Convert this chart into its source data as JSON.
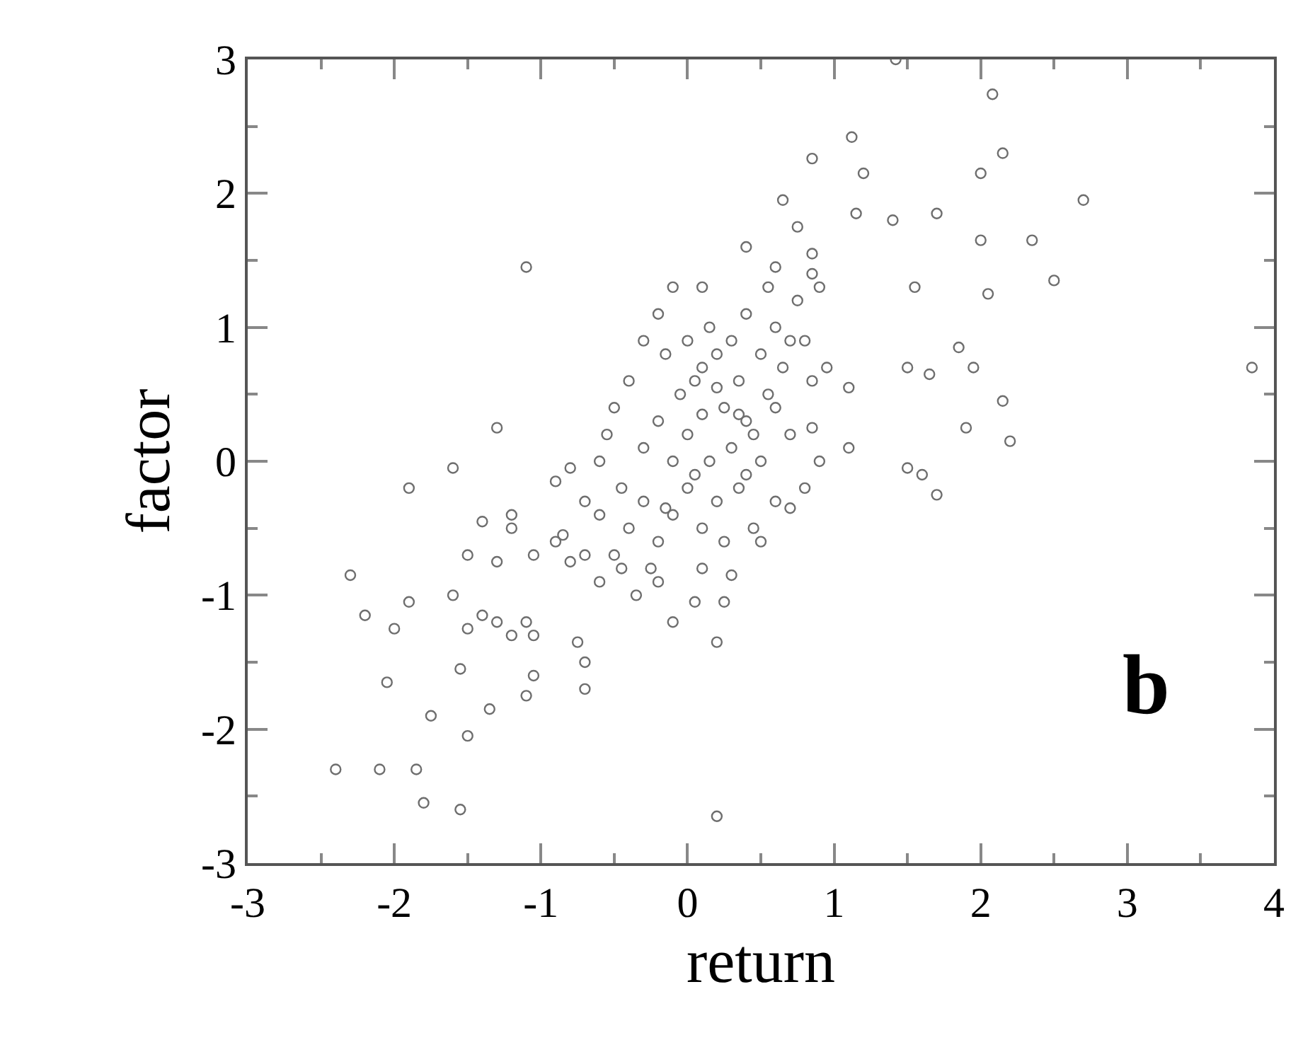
{
  "chart_data": {
    "type": "scatter",
    "xlabel": "return",
    "ylabel": "factor",
    "annotations": [
      "b"
    ],
    "xlim": [
      -3,
      4
    ],
    "xticks": [
      -3,
      -2,
      -1,
      0,
      1,
      2,
      3,
      4
    ],
    "ylim": [
      -3,
      3
    ],
    "yticks": [
      -3,
      -2,
      -1,
      0,
      1,
      2,
      3
    ],
    "marker": "circle",
    "series": [
      {
        "color": "#6e6e6e",
        "x": [
          1.42,
          2.08,
          1.12,
          0.85,
          1.2,
          2.15,
          2.0,
          2.7,
          1.7,
          1.4,
          1.15,
          0.65,
          0.75,
          2.0,
          2.35,
          2.5,
          1.55,
          2.05,
          0.85,
          0.85,
          0.4,
          0.6,
          1.5,
          1.65,
          1.85,
          1.95,
          3.85,
          1.1,
          2.15,
          1.9,
          2.2,
          1.1,
          1.5,
          1.6,
          1.7,
          0.85,
          -1.1,
          -0.1,
          0.1,
          -0.2,
          -0.3,
          -1.3,
          -1.6,
          -1.9,
          -2.3,
          -2.2,
          -2.0,
          -1.9,
          -1.6,
          -1.5,
          -1.4,
          -1.3,
          -1.2,
          -1.05,
          -1.1,
          -2.05,
          -1.55,
          -1.75,
          -1.35,
          -1.05,
          -1.1,
          -0.7,
          -0.7,
          -0.75,
          -2.4,
          -2.1,
          -1.85,
          -1.5,
          -1.8,
          -1.55,
          0.2,
          -0.1,
          0.05,
          0.25,
          0.2,
          -0.2,
          -1.4,
          -1.5,
          -1.3,
          -1.05,
          -1.2,
          -0.9,
          -0.8,
          -1.2,
          -0.85,
          -0.7,
          -0.6,
          -0.5,
          -0.4,
          -0.45,
          -0.3,
          -0.3,
          -0.2,
          -0.2,
          -0.1,
          -0.1,
          -0.05,
          0.0,
          0.0,
          0.05,
          0.1,
          0.1,
          0.15,
          0.2,
          0.2,
          0.25,
          0.3,
          0.3,
          0.35,
          0.35,
          0.4,
          0.4,
          0.45,
          0.5,
          0.5,
          0.55,
          0.6,
          0.6,
          0.65,
          0.7,
          0.75,
          0.8,
          0.8,
          0.85,
          0.9,
          0.9,
          -0.5,
          -0.6,
          -0.7,
          -0.55,
          -0.4,
          -0.35,
          -0.25,
          -0.15,
          0.0,
          0.1,
          0.15,
          0.25,
          0.45,
          0.5,
          0.6,
          0.7,
          -0.8,
          -0.9,
          -0.6,
          -0.45,
          0.05,
          0.2,
          0.35,
          0.55,
          0.7,
          0.95,
          0.3,
          -0.15,
          0.4,
          0.1
        ],
        "values": [
          3.0,
          2.74,
          2.42,
          2.26,
          2.15,
          2.3,
          2.15,
          1.95,
          1.85,
          1.8,
          1.85,
          1.95,
          1.75,
          1.65,
          1.65,
          1.35,
          1.3,
          1.25,
          1.55,
          1.4,
          1.6,
          1.45,
          0.7,
          0.65,
          0.85,
          0.7,
          0.7,
          0.55,
          0.45,
          0.25,
          0.15,
          0.1,
          -0.05,
          -0.1,
          -0.25,
          0.25,
          1.45,
          1.3,
          1.3,
          1.1,
          0.9,
          0.25,
          -0.05,
          -0.2,
          -0.85,
          -1.15,
          -1.25,
          -1.05,
          -1.0,
          -1.25,
          -1.15,
          -1.2,
          -1.3,
          -1.3,
          -1.2,
          -1.65,
          -1.55,
          -1.9,
          -1.85,
          -1.6,
          -1.75,
          -1.7,
          -1.5,
          -1.35,
          -2.3,
          -2.3,
          -2.3,
          -2.05,
          -2.55,
          -2.6,
          -2.65,
          -1.2,
          -1.05,
          -1.05,
          -1.35,
          -0.9,
          -0.45,
          -0.7,
          -0.75,
          -0.7,
          -0.5,
          -0.15,
          -0.05,
          -0.4,
          -0.55,
          -0.3,
          -0.9,
          -0.7,
          -0.5,
          -0.2,
          -0.3,
          0.1,
          -0.6,
          0.3,
          -0.4,
          0.0,
          0.5,
          -0.2,
          0.2,
          0.6,
          -0.5,
          0.35,
          0.0,
          0.8,
          -0.3,
          0.4,
          0.1,
          0.9,
          -0.2,
          0.6,
          1.1,
          0.3,
          -0.5,
          0.8,
          0.0,
          0.5,
          1.0,
          -0.3,
          0.7,
          0.2,
          1.2,
          0.9,
          -0.2,
          0.6,
          1.3,
          0.0,
          0.4,
          -0.4,
          -0.7,
          0.2,
          0.6,
          -1.0,
          -0.8,
          0.8,
          0.9,
          -0.8,
          1.0,
          -0.6,
          0.2,
          -0.6,
          0.4,
          0.9,
          -0.75,
          -0.6,
          0.0,
          -0.8,
          -0.1,
          0.55,
          0.35,
          1.3,
          -0.35,
          0.7,
          -0.85,
          -0.35,
          -0.1,
          0.7
        ]
      }
    ]
  }
}
